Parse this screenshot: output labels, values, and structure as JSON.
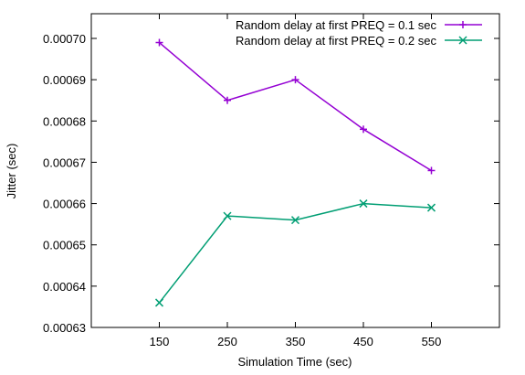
{
  "chart_data": {
    "type": "line",
    "xlabel": "Simulation Time (sec)",
    "ylabel": "Jitter (sec)",
    "x": [
      150,
      250,
      350,
      450,
      550
    ],
    "xlim": [
      50,
      650
    ],
    "ylim": [
      0.00063,
      0.000705
    ],
    "xticks": [
      "150",
      "250",
      "350",
      "450",
      "550"
    ],
    "yticks": [
      "0.00063",
      "0.00064",
      "0.00065",
      "0.00066",
      "0.00067",
      "0.00068",
      "0.00069",
      "0.00070"
    ],
    "ytick_values": [
      0.00063,
      0.00064,
      0.00065,
      0.00066,
      0.00067,
      0.00068,
      0.00069,
      0.0007
    ],
    "grid": false,
    "legend_position": "top-right",
    "series": [
      {
        "name": "Random delay at first PREQ = 0.1 sec",
        "values": [
          0.000699,
          0.000685,
          0.00069,
          0.000678,
          0.000668
        ],
        "color": "#9400d3",
        "marker": "plus"
      },
      {
        "name": "Random delay at first PREQ = 0.2 sec",
        "values": [
          0.000636,
          0.000657,
          0.000656,
          0.00066,
          0.000659
        ],
        "color": "#009e73",
        "marker": "cross"
      }
    ]
  }
}
